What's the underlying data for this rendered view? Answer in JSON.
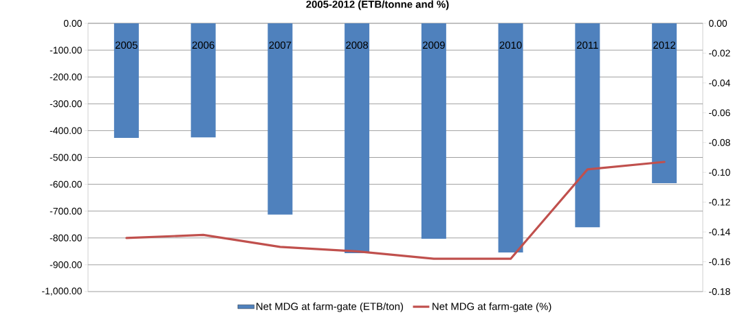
{
  "chart_data": {
    "type": "bar",
    "title": "2005-2012 (ETB/tonne and %)",
    "categories": [
      "2005",
      "2006",
      "2007",
      "2008",
      "2009",
      "2010",
      "2011",
      "2012"
    ],
    "series": [
      {
        "name": "Net MDG at farm-gate (ETB/ton)",
        "color": "#4f81bd",
        "values": [
          -427,
          -425,
          -713,
          -857,
          -803,
          -854,
          -760,
          -596
        ]
      },
      {
        "name": "Net MDG at farm-gate (%)",
        "type": "line",
        "axis": "y2",
        "color": "#c0504d",
        "values": [
          -0.144,
          -0.142,
          -0.15,
          -0.153,
          -0.158,
          -0.158,
          -0.098,
          -0.093
        ]
      }
    ],
    "ylim": [
      -1000,
      0
    ],
    "yticks": [
      {
        "value": 0,
        "label": "0.00"
      },
      {
        "value": -100,
        "label": "-100.00"
      },
      {
        "value": -200,
        "label": "-200.00"
      },
      {
        "value": -300,
        "label": "-300.00"
      },
      {
        "value": -400,
        "label": "-400.00"
      },
      {
        "value": -500,
        "label": "-500.00"
      },
      {
        "value": -600,
        "label": "-600.00"
      },
      {
        "value": -700,
        "label": "-700.00"
      },
      {
        "value": -800,
        "label": "-800.00"
      },
      {
        "value": -900,
        "label": "-900.00"
      },
      {
        "value": -1000,
        "label": "-1,000.00"
      }
    ],
    "y2lim": [
      -0.18,
      0
    ],
    "y2ticks": [
      {
        "value": 0,
        "label": "0.00"
      },
      {
        "value": -0.02,
        "label": "-0.02"
      },
      {
        "value": -0.04,
        "label": "-0.04"
      },
      {
        "value": -0.06,
        "label": "-0.06"
      },
      {
        "value": -0.08,
        "label": "-0.08"
      },
      {
        "value": -0.1,
        "label": "-0.10"
      },
      {
        "value": -0.12,
        "label": "-0.12"
      },
      {
        "value": -0.14,
        "label": "-0.14"
      },
      {
        "value": -0.16,
        "label": "-0.16"
      },
      {
        "value": -0.18,
        "label": "-0.18"
      }
    ],
    "grid": "y",
    "legend": "bottom"
  }
}
